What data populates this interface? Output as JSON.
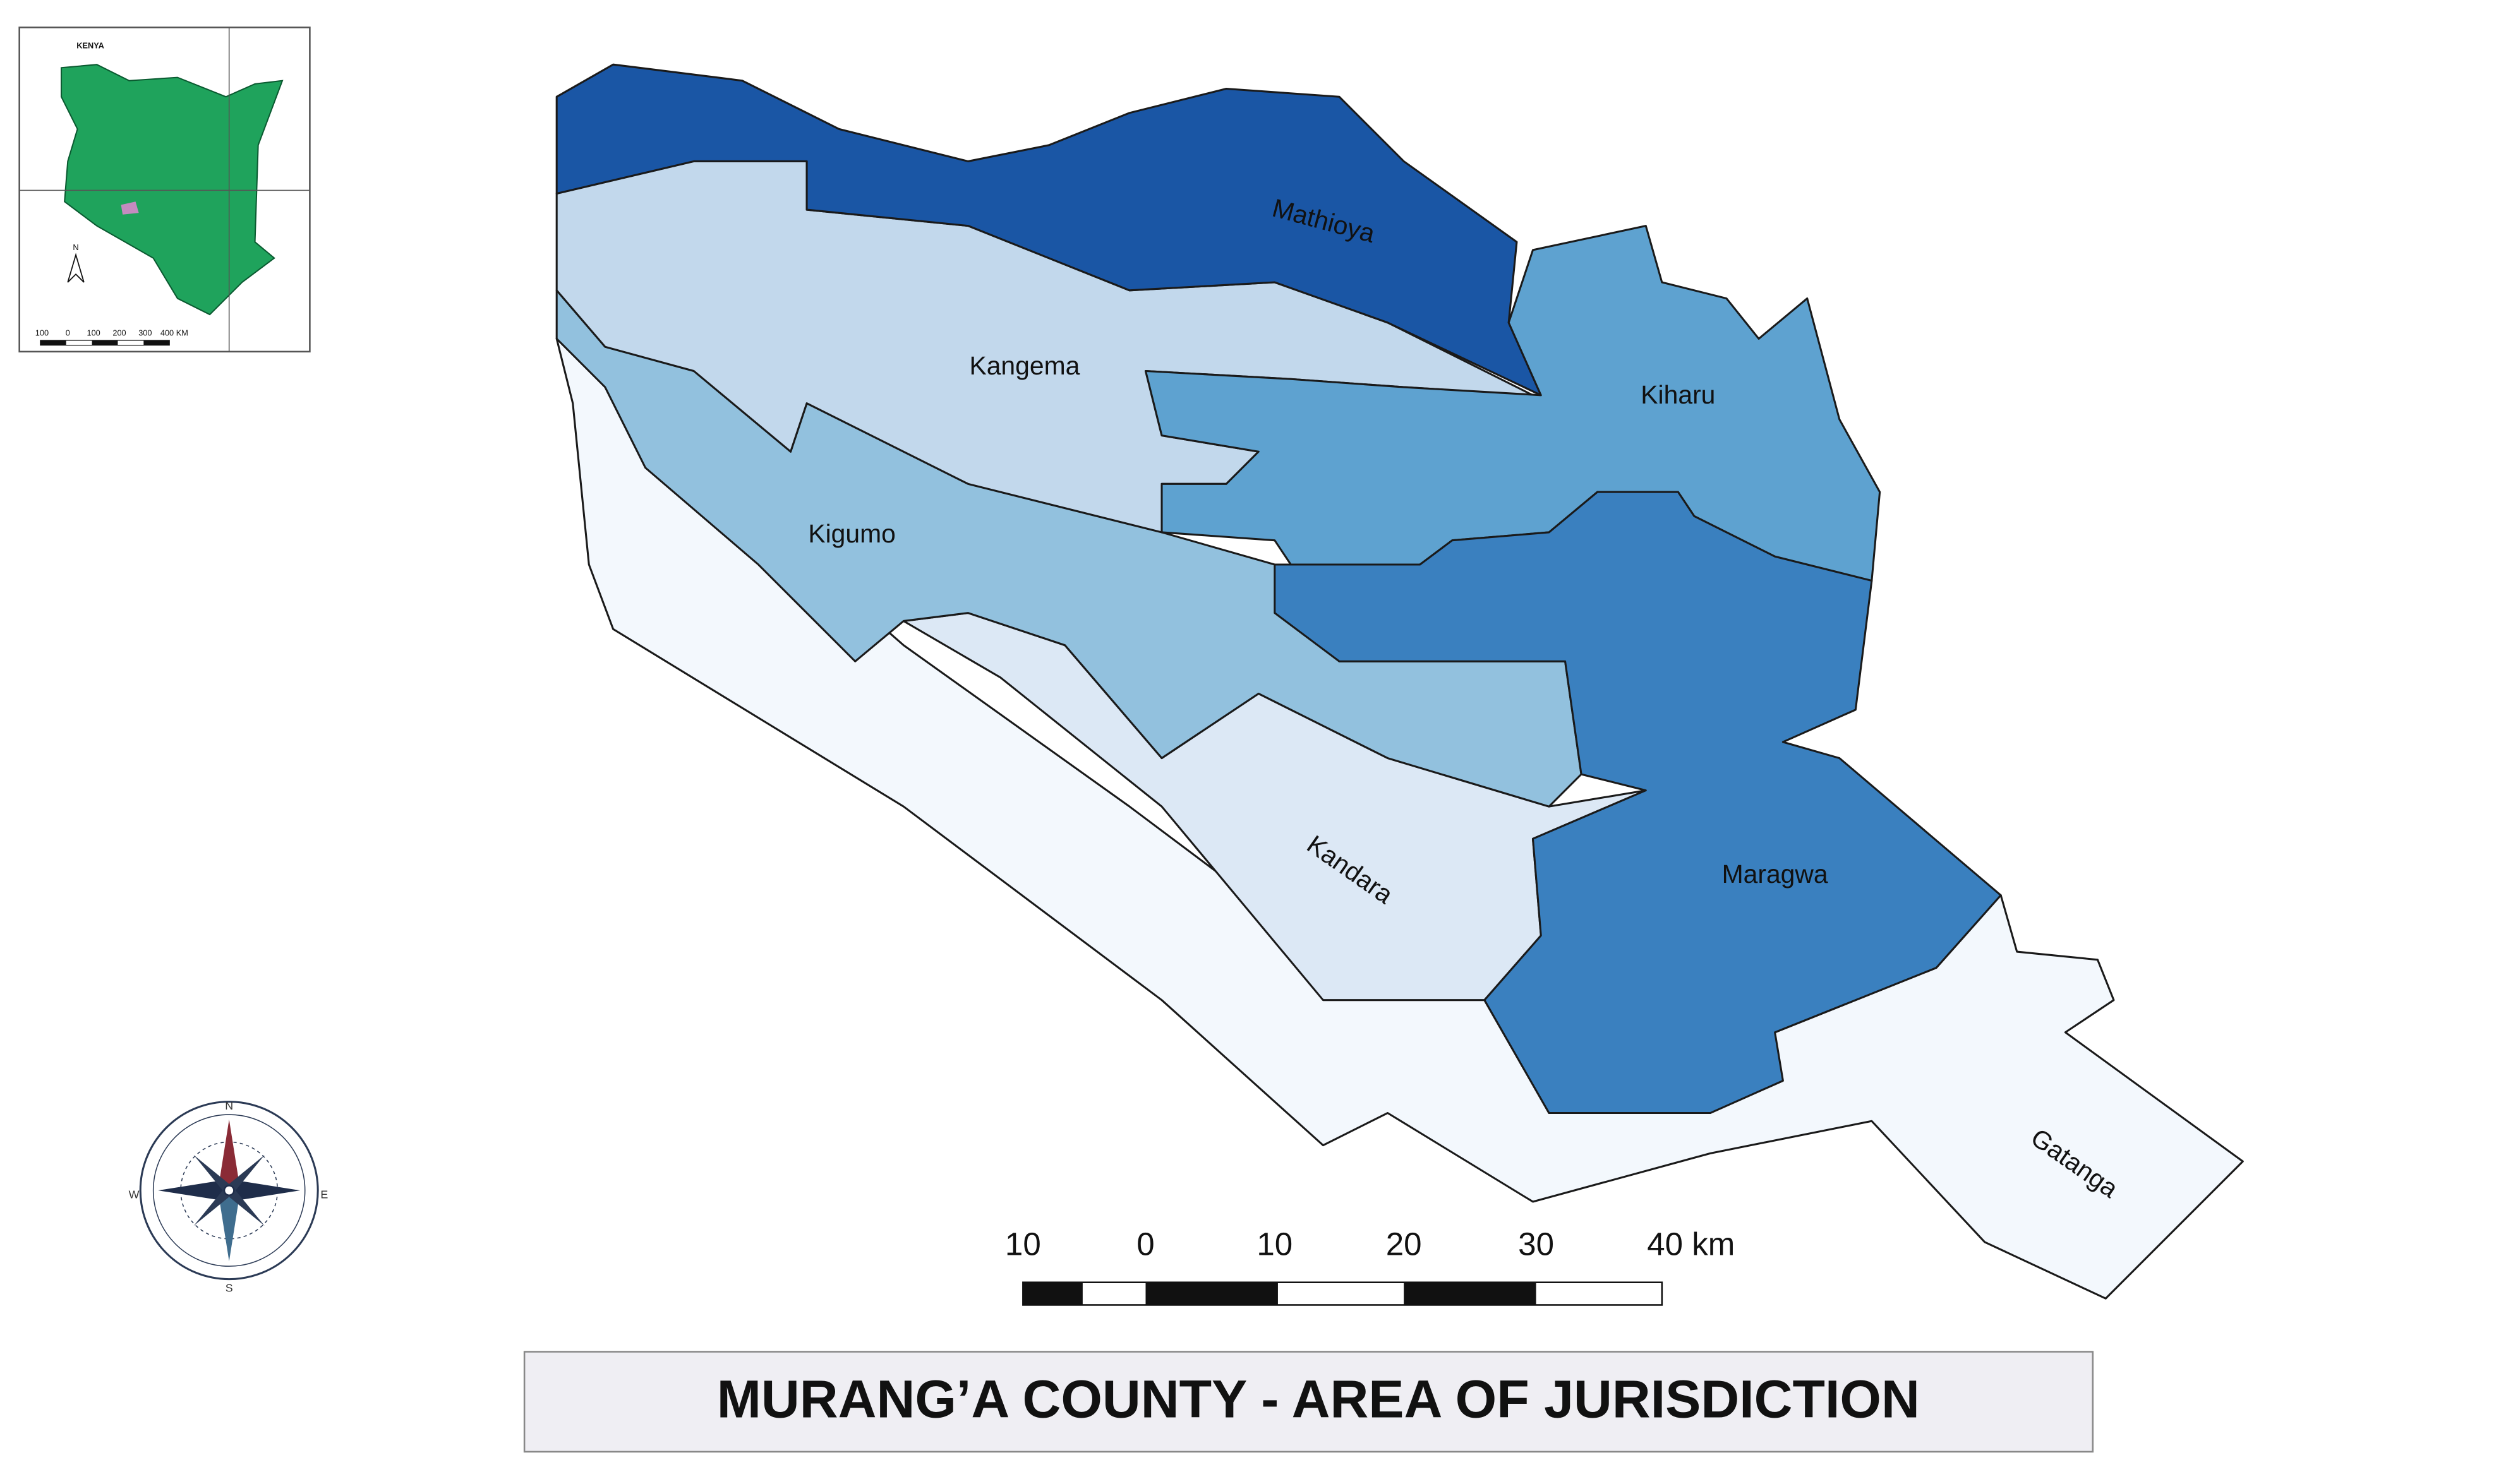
{
  "map": {
    "inset": {
      "country": "KENYA",
      "north": "N",
      "scale_labels": [
        "100",
        "0",
        "100",
        "200",
        "300",
        "400 KM"
      ]
    },
    "compass": {
      "n": "N",
      "e": "E",
      "s": "S",
      "w": "W"
    },
    "regions": [
      "Mathioya",
      "Kangema",
      "Kiharu",
      "Kigumo",
      "Maragwa",
      "Kandara",
      "Gatanga"
    ],
    "scale": {
      "labels": [
        "10",
        "0",
        "10",
        "20",
        "30",
        "40 km"
      ]
    },
    "title": "MURANG’A COUNTY - AREA OF JURISDICTION"
  }
}
